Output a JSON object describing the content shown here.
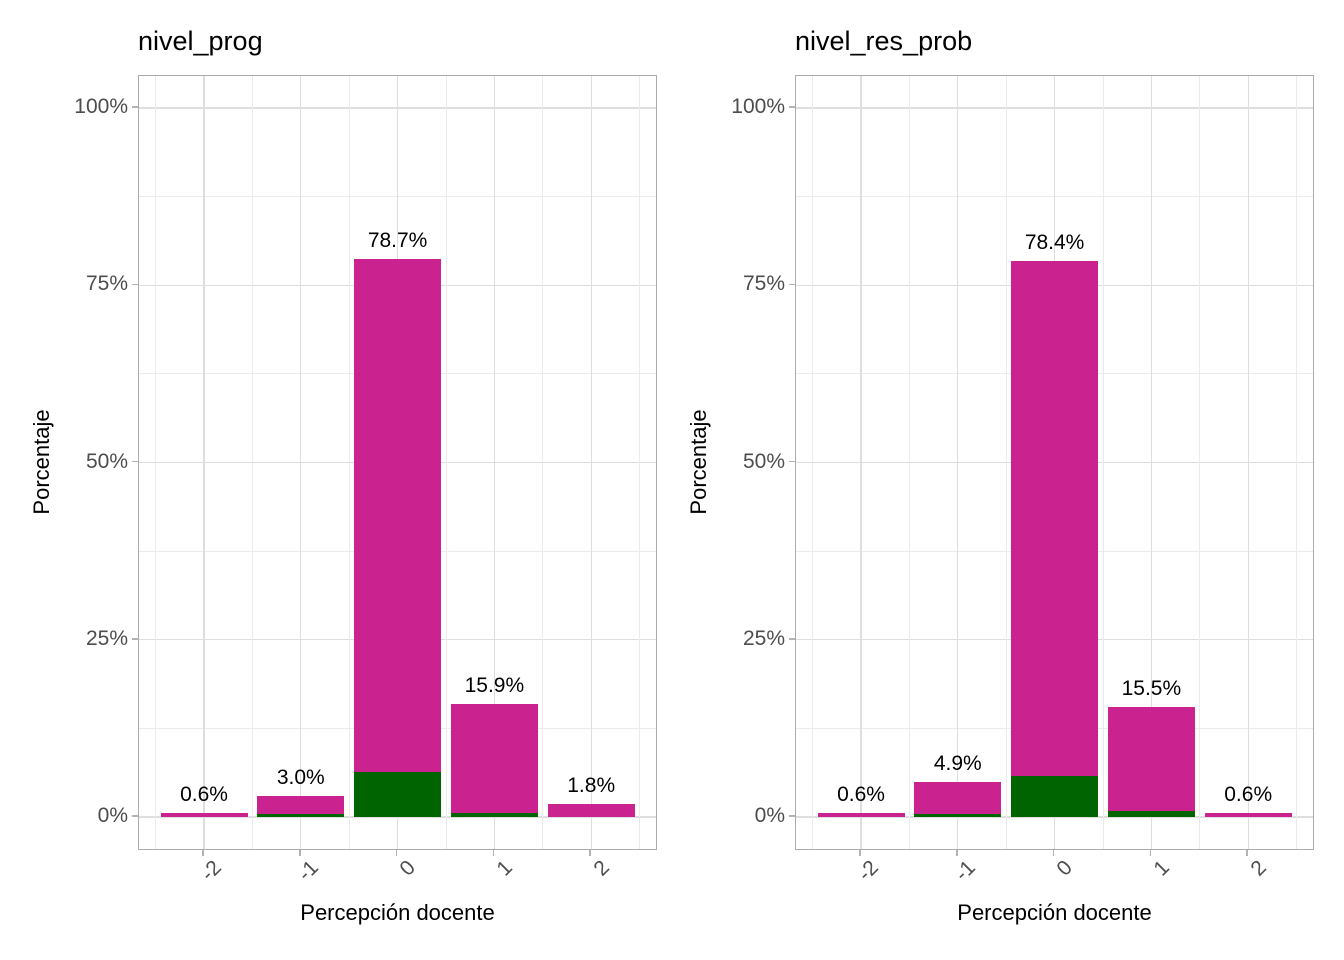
{
  "palette": {
    "background": "#FFFFFF",
    "bar_magenta": "#CA2390",
    "bar_green": "#006400",
    "panel_border": "#ABABAB",
    "grid_major": "#DEDEDE",
    "grid_minor": "#EBEBEB",
    "tick_mark": "#B3B3B3",
    "axis_text": "#4D4D4D",
    "title_text": "#000000"
  },
  "chart_data": [
    {
      "type": "bar",
      "stacked": true,
      "title": "nivel_prog",
      "xlabel": "Percepción docente",
      "ylabel": "Porcentaje",
      "categories": [
        "-2",
        "-1",
        "0",
        "1",
        "2"
      ],
      "series": [
        {
          "name": "green-bottom-segment",
          "color": "#006400",
          "values": [
            0,
            0.4,
            6.3,
            0.6,
            0
          ]
        },
        {
          "name": "magenta-top-segment",
          "color": "#CA2390",
          "values": [
            0.6,
            2.6,
            72.4,
            15.3,
            1.8
          ]
        }
      ],
      "totals": [
        0.6,
        3.0,
        78.7,
        15.9,
        1.8
      ],
      "bar_labels": [
        "0.6%",
        "3.0%",
        "78.7%",
        "15.9%",
        "1.8%"
      ],
      "yticks": [
        {
          "pct": 0,
          "label": "0%"
        },
        {
          "pct": 25,
          "label": "25%"
        },
        {
          "pct": 50,
          "label": "50%"
        },
        {
          "pct": 75,
          "label": "75%"
        },
        {
          "pct": 100,
          "label": "100%"
        }
      ],
      "ylim": [
        0,
        100
      ],
      "grid": "major+minor",
      "legend": "none"
    },
    {
      "type": "bar",
      "stacked": true,
      "title": "nivel_res_prob",
      "xlabel": "Percepción docente",
      "ylabel": "Porcentaje",
      "categories": [
        "-2",
        "-1",
        "0",
        "1",
        "2"
      ],
      "series": [
        {
          "name": "green-bottom-segment",
          "color": "#006400",
          "values": [
            0,
            0.4,
            5.8,
            0.8,
            0
          ]
        },
        {
          "name": "magenta-top-segment",
          "color": "#CA2390",
          "values": [
            0.6,
            4.5,
            72.6,
            14.7,
            0.6
          ]
        }
      ],
      "totals": [
        0.6,
        4.9,
        78.4,
        15.5,
        0.6
      ],
      "bar_labels": [
        "0.6%",
        "4.9%",
        "78.4%",
        "15.5%",
        "0.6%"
      ],
      "yticks": [
        {
          "pct": 0,
          "label": "0%"
        },
        {
          "pct": 25,
          "label": "25%"
        },
        {
          "pct": 50,
          "label": "50%"
        },
        {
          "pct": 75,
          "label": "75%"
        },
        {
          "pct": 100,
          "label": "100%"
        }
      ],
      "ylim": [
        0,
        100
      ],
      "grid": "major+minor",
      "legend": "none"
    }
  ]
}
